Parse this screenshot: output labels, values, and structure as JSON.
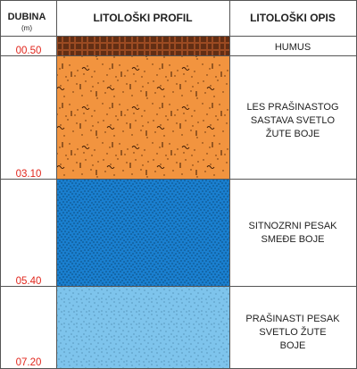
{
  "header": {
    "depth_title": "DUBINA",
    "depth_unit": "(m)",
    "profile_title": "LITOLOŠKI PROFIL",
    "description_title": "LITOLOŠKI OPIS"
  },
  "layers": [
    {
      "id": "humus",
      "bottom_depth": "00.50",
      "description": [
        "HUMUS"
      ],
      "fill_color": "#9a4a22",
      "pattern": "humus-hatch"
    },
    {
      "id": "les",
      "bottom_depth": "03.10",
      "description": [
        "LES PRAŠINASTOG",
        "SASTAVA SVETLO",
        "ŽUTE BOJE"
      ],
      "fill_color": "#f2943f",
      "pattern": "dots-tilde-dash"
    },
    {
      "id": "sitnozrni",
      "bottom_depth": "05.40",
      "description": [
        "SITNOZRNI PESAK",
        "SMEĐE BOJE"
      ],
      "fill_color": "#1a7fcf",
      "pattern": "dense-dots"
    },
    {
      "id": "prasinasti",
      "bottom_depth": "07.20",
      "description": [
        "PRAŠINASTI PESAK",
        "SVETLO ŽUTE",
        "BOJE"
      ],
      "fill_color": "#7ec4ec",
      "pattern": "fine-dots"
    }
  ],
  "colors": {
    "depth_text": "#e1261c",
    "grid_line": "#555555"
  }
}
